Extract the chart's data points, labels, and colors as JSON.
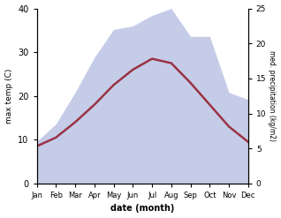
{
  "months": [
    "Jan",
    "Feb",
    "Mar",
    "Apr",
    "May",
    "Jun",
    "Jul",
    "Aug",
    "Sep",
    "Oct",
    "Nov",
    "Dec"
  ],
  "temperature": [
    8.5,
    10.5,
    14.0,
    18.0,
    22.5,
    26.0,
    28.5,
    27.5,
    23.0,
    18.0,
    13.0,
    9.5
  ],
  "precipitation": [
    6.0,
    8.5,
    13.0,
    18.0,
    22.0,
    22.5,
    24.0,
    25.0,
    21.0,
    21.0,
    13.0,
    12.0
  ],
  "temp_color": "#993344",
  "precip_fill_color": "#c5cce8",
  "temp_ylim": [
    0,
    40
  ],
  "precip_ylim": [
    0,
    25
  ],
  "xlabel": "date (month)",
  "ylabel_left": "max temp (C)",
  "ylabel_right": "med. precipitation (kg/m2)",
  "temp_yticks": [
    0,
    10,
    20,
    30,
    40
  ],
  "precip_yticks": [
    0,
    5,
    10,
    15,
    20,
    25
  ],
  "bg_color": "#ffffff"
}
